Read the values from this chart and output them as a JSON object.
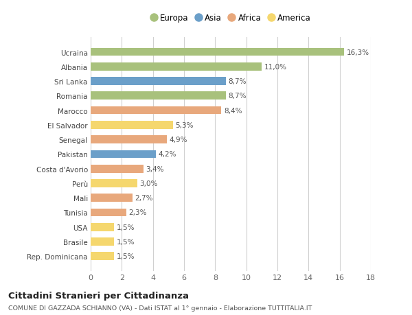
{
  "categories": [
    "Rep. Dominicana",
    "Brasile",
    "USA",
    "Tunisia",
    "Mali",
    "Perù",
    "Costa d'Avorio",
    "Pakistan",
    "Senegal",
    "El Salvador",
    "Marocco",
    "Romania",
    "Sri Lanka",
    "Albania",
    "Ucraina"
  ],
  "values": [
    1.5,
    1.5,
    1.5,
    2.3,
    2.7,
    3.0,
    3.4,
    4.2,
    4.9,
    5.3,
    8.4,
    8.7,
    8.7,
    11.0,
    16.3
  ],
  "labels": [
    "1,5%",
    "1,5%",
    "1,5%",
    "2,3%",
    "2,7%",
    "3,0%",
    "3,4%",
    "4,2%",
    "4,9%",
    "5,3%",
    "8,4%",
    "8,7%",
    "8,7%",
    "11,0%",
    "16,3%"
  ],
  "continents": [
    "America",
    "America",
    "America",
    "Africa",
    "Africa",
    "America",
    "Africa",
    "Asia",
    "Africa",
    "America",
    "Africa",
    "Europa",
    "Asia",
    "Europa",
    "Europa"
  ],
  "continent_colors": {
    "Europa": "#a8c17c",
    "Asia": "#6b9fc9",
    "Africa": "#e8a87c",
    "America": "#f5d76e"
  },
  "legend_order": [
    "Europa",
    "Asia",
    "Africa",
    "America"
  ],
  "title": "Cittadini Stranieri per Cittadinanza",
  "subtitle": "COMUNE DI GAZZADA SCHIANNO (VA) - Dati ISTAT al 1° gennaio - Elaborazione TUTTITALIA.IT",
  "xlim": [
    0,
    18
  ],
  "xticks": [
    0,
    2,
    4,
    6,
    8,
    10,
    12,
    14,
    16,
    18
  ],
  "bg_color": "#ffffff",
  "grid_color": "#d0d0d0",
  "bar_height": 0.55
}
